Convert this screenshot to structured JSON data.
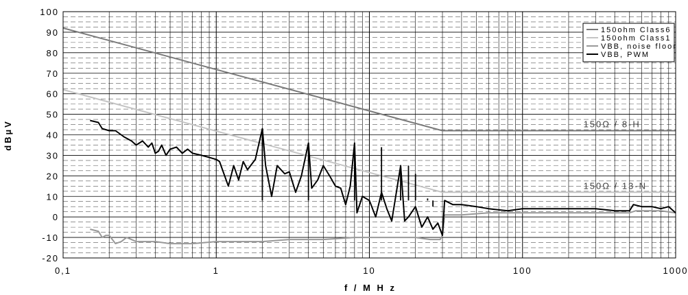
{
  "chart_data": {
    "type": "line",
    "xscale": "log",
    "xlim": [
      0.1,
      1000
    ],
    "ylim": [
      -20,
      100
    ],
    "xlabel": "f / M H z",
    "ylabel": "dBµV",
    "x_ticks": [
      {
        "value": 0.1,
        "label": "0,1"
      },
      {
        "value": 1,
        "label": "1"
      },
      {
        "value": 10,
        "label": "10"
      },
      {
        "value": 100,
        "label": "100"
      },
      {
        "value": 1000,
        "label": "1000"
      }
    ],
    "y_ticks": [
      {
        "value": -20,
        "label": "-20"
      },
      {
        "value": -10,
        "label": "-10"
      },
      {
        "value": 0,
        "label": "0"
      },
      {
        "value": 10,
        "label": "10"
      },
      {
        "value": 20,
        "label": "20"
      },
      {
        "value": 30,
        "label": "30"
      },
      {
        "value": 40,
        "label": "40"
      },
      {
        "value": 50,
        "label": "50"
      },
      {
        "value": 60,
        "label": "60"
      },
      {
        "value": 70,
        "label": "70"
      },
      {
        "value": 80,
        "label": "80"
      },
      {
        "value": 90,
        "label": "90"
      },
      {
        "value": 100,
        "label": "100"
      }
    ],
    "grid": true,
    "legend_position": "top-right",
    "series": [
      {
        "name": "150ohm Class6",
        "color": "#7a7a7a",
        "width": 2,
        "points": [
          [
            0.1,
            92
          ],
          [
            30,
            42
          ],
          [
            1000,
            42
          ]
        ]
      },
      {
        "name": "150ohm Class1",
        "color": "#c4c4c4",
        "width": 2,
        "points": [
          [
            0.1,
            62
          ],
          [
            30,
            12
          ],
          [
            1000,
            12
          ]
        ]
      },
      {
        "name": "VBB, noise floor",
        "color": "#999999",
        "width": 2,
        "points": [
          [
            0.15,
            -6
          ],
          [
            0.17,
            -7
          ],
          [
            0.18,
            -10
          ],
          [
            0.19,
            -9
          ],
          [
            0.2,
            -9
          ],
          [
            0.22,
            -13
          ],
          [
            0.24,
            -12
          ],
          [
            0.26,
            -10
          ],
          [
            0.3,
            -12
          ],
          [
            0.4,
            -12
          ],
          [
            0.5,
            -13
          ],
          [
            0.7,
            -13
          ],
          [
            1,
            -12
          ],
          [
            2,
            -12
          ],
          [
            3,
            -11
          ],
          [
            5,
            -11
          ],
          [
            8,
            -10
          ],
          [
            10,
            -10
          ],
          [
            15,
            -10
          ],
          [
            20,
            -10
          ],
          [
            25,
            -11
          ],
          [
            29,
            -11
          ],
          [
            30,
            -9
          ],
          [
            31,
            1
          ],
          [
            40,
            1
          ],
          [
            60,
            2
          ],
          [
            100,
            2
          ],
          [
            200,
            2
          ],
          [
            300,
            2
          ],
          [
            500,
            2
          ],
          [
            550,
            3
          ],
          [
            800,
            3
          ],
          [
            1000,
            2
          ]
        ]
      },
      {
        "name": "VBB, PWM",
        "color": "#000000",
        "width": 2,
        "points": [
          [
            0.15,
            47
          ],
          [
            0.17,
            46
          ],
          [
            0.18,
            43
          ],
          [
            0.2,
            42
          ],
          [
            0.22,
            42
          ],
          [
            0.25,
            39
          ],
          [
            0.28,
            37
          ],
          [
            0.3,
            35
          ],
          [
            0.33,
            37
          ],
          [
            0.36,
            34
          ],
          [
            0.38,
            36
          ],
          [
            0.4,
            31
          ],
          [
            0.42,
            32
          ],
          [
            0.44,
            35
          ],
          [
            0.47,
            30
          ],
          [
            0.5,
            33
          ],
          [
            0.55,
            34
          ],
          [
            0.6,
            31
          ],
          [
            0.65,
            33
          ],
          [
            0.7,
            31
          ],
          [
            0.8,
            30
          ],
          [
            0.9,
            29
          ],
          [
            1.0,
            28
          ],
          [
            1.05,
            27
          ],
          [
            1.2,
            15
          ],
          [
            1.3,
            25
          ],
          [
            1.4,
            18
          ],
          [
            1.5,
            27
          ],
          [
            1.6,
            23
          ],
          [
            1.8,
            28
          ],
          [
            2.0,
            43
          ],
          [
            2.1,
            25
          ],
          [
            2.3,
            10
          ],
          [
            2.5,
            25
          ],
          [
            2.8,
            21
          ],
          [
            3.0,
            22
          ],
          [
            3.3,
            12
          ],
          [
            3.6,
            20
          ],
          [
            4.0,
            36
          ],
          [
            4.2,
            14
          ],
          [
            4.6,
            18
          ],
          [
            5.0,
            25
          ],
          [
            5.5,
            20
          ],
          [
            6.0,
            15
          ],
          [
            6.5,
            14
          ],
          [
            7.0,
            6
          ],
          [
            7.5,
            15
          ],
          [
            8.0,
            36
          ],
          [
            8.3,
            2
          ],
          [
            9.0,
            10
          ],
          [
            10.0,
            8
          ],
          [
            11,
            0
          ],
          [
            12,
            12
          ],
          [
            13,
            4
          ],
          [
            14,
            -2
          ],
          [
            16,
            25
          ],
          [
            17,
            -2
          ],
          [
            18,
            0
          ],
          [
            20,
            5
          ],
          [
            22,
            -5
          ],
          [
            24,
            0
          ],
          [
            26,
            -6
          ],
          [
            28,
            -3
          ],
          [
            30,
            -9
          ],
          [
            31,
            8
          ],
          [
            35,
            6
          ],
          [
            40,
            6
          ],
          [
            50,
            5
          ],
          [
            60,
            4
          ],
          [
            80,
            3
          ],
          [
            100,
            4
          ],
          [
            150,
            4
          ],
          [
            200,
            4
          ],
          [
            300,
            4
          ],
          [
            400,
            3
          ],
          [
            500,
            3
          ],
          [
            530,
            6
          ],
          [
            600,
            5
          ],
          [
            700,
            5
          ],
          [
            800,
            4
          ],
          [
            900,
            5
          ],
          [
            1000,
            2
          ]
        ]
      }
    ],
    "spikes": {
      "series": "VBB, PWM",
      "base": 8,
      "peaks": [
        [
          2.0,
          43
        ],
        [
          4.0,
          36
        ],
        [
          8.0,
          36
        ],
        [
          12.0,
          34
        ],
        [
          16.0,
          25
        ],
        [
          18.0,
          25
        ],
        [
          20.0,
          21
        ],
        [
          24.0,
          9
        ],
        [
          26.0,
          5
        ],
        [
          28.0,
          8
        ]
      ]
    },
    "annotations": [
      {
        "text": "150Ω / 8-H",
        "x": 250,
        "y": 42
      },
      {
        "text": "150Ω / 13-N",
        "x": 250,
        "y": 12
      }
    ]
  }
}
